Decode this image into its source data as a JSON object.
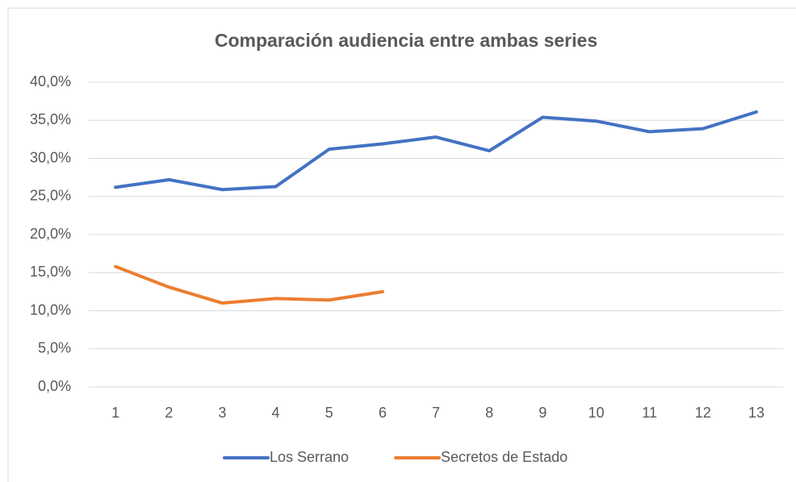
{
  "chart_data": {
    "type": "line",
    "title": "Comparación audiencia entre ambas series",
    "categories": [
      "1",
      "2",
      "3",
      "4",
      "5",
      "6",
      "7",
      "8",
      "9",
      "10",
      "11",
      "12",
      "13"
    ],
    "series": [
      {
        "name": "Los Serrano",
        "color": "#4472c4",
        "values": [
          26.2,
          27.2,
          25.9,
          26.3,
          31.2,
          31.9,
          32.8,
          31.0,
          35.4,
          34.9,
          33.5,
          33.9,
          36.1
        ]
      },
      {
        "name": "Secretos de Estado",
        "color": "#ed7d31",
        "values": [
          15.8,
          13.1,
          11.0,
          11.6,
          11.4,
          12.5,
          null,
          null,
          null,
          null,
          null,
          null,
          null
        ]
      }
    ],
    "ylim": [
      0,
      40
    ],
    "yticks": [
      {
        "value": 0,
        "label": "0,0%"
      },
      {
        "value": 5,
        "label": "5,0%"
      },
      {
        "value": 10,
        "label": "10,0%"
      },
      {
        "value": 15,
        "label": "15,0%"
      },
      {
        "value": 20,
        "label": "20,0%"
      },
      {
        "value": 25,
        "label": "25,0%"
      },
      {
        "value": 30,
        "label": "30,0%"
      },
      {
        "value": 35,
        "label": "35,0%"
      },
      {
        "value": 40,
        "label": "40,0%"
      }
    ],
    "grid": true,
    "legend": "bottom"
  }
}
